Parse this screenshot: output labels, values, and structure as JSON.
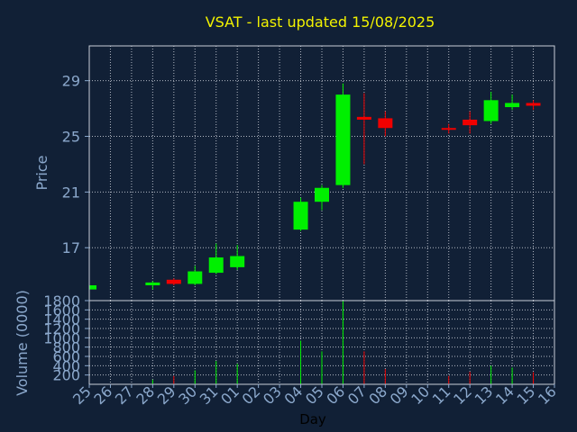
{
  "chart_data": {
    "type": "candlestick",
    "title": "VSAT - last updated 15/08/2025",
    "xlabel": "Day",
    "colors": {
      "background": "#112036",
      "up": "#00f000",
      "down": "#f00000",
      "title": "#f2f200",
      "axis_text": "#8ba8cc",
      "grid": "#d9dde6"
    },
    "x_ticks": [
      "25",
      "26",
      "27",
      "28",
      "29",
      "30",
      "31",
      "01",
      "02",
      "03",
      "04",
      "05",
      "06",
      "07",
      "08",
      "09",
      "10",
      "11",
      "12",
      "13",
      "14",
      "15",
      "16"
    ],
    "price_panel": {
      "ylabel": "Price",
      "ylim": [
        13.2,
        31.5
      ],
      "yticks": [
        17,
        21,
        25,
        29
      ],
      "grid": true
    },
    "volume_panel": {
      "ylabel": "Volume (0000)",
      "ylim": [
        0,
        1800
      ],
      "yticks": [
        200,
        400,
        600,
        800,
        1000,
        1200,
        1400,
        1600,
        1800
      ],
      "grid": true
    },
    "candles": [
      {
        "day": "25",
        "open": 14.0,
        "high": 14.3,
        "low": 13.9,
        "close": 14.3,
        "volume": 0
      },
      {
        "day": "28",
        "open": 14.3,
        "high": 14.6,
        "low": 14.0,
        "close": 14.5,
        "volume": 100
      },
      {
        "day": "29",
        "open": 14.7,
        "high": 14.8,
        "low": 14.3,
        "close": 14.4,
        "volume": 180
      },
      {
        "day": "30",
        "open": 14.4,
        "high": 15.7,
        "low": 14.3,
        "close": 15.3,
        "volume": 300
      },
      {
        "day": "31",
        "open": 15.2,
        "high": 17.3,
        "low": 15.1,
        "close": 16.3,
        "volume": 500
      },
      {
        "day": "01",
        "open": 15.6,
        "high": 17.2,
        "low": 15.4,
        "close": 16.4,
        "volume": 440
      },
      {
        "day": "04",
        "open": 18.3,
        "high": 20.6,
        "low": 18.2,
        "close": 20.3,
        "volume": 940
      },
      {
        "day": "05",
        "open": 20.3,
        "high": 21.5,
        "low": 19.7,
        "close": 21.3,
        "volume": 710
      },
      {
        "day": "06",
        "open": 21.5,
        "high": 28.8,
        "low": 21.3,
        "close": 28.0,
        "volume": 1790
      },
      {
        "day": "07",
        "open": 26.4,
        "high": 28.1,
        "low": 23.0,
        "close": 26.2,
        "volume": 710
      },
      {
        "day": "08",
        "open": 26.3,
        "high": 26.8,
        "low": 25.0,
        "close": 25.6,
        "volume": 330
      },
      {
        "day": "11",
        "open": 25.6,
        "high": 25.9,
        "low": 25.2,
        "close": 25.5,
        "volume": 180
      },
      {
        "day": "12",
        "open": 26.2,
        "high": 26.8,
        "low": 25.2,
        "close": 25.8,
        "volume": 270
      },
      {
        "day": "13",
        "open": 26.1,
        "high": 28.2,
        "low": 25.9,
        "close": 27.6,
        "volume": 400
      },
      {
        "day": "14",
        "open": 27.1,
        "high": 28.0,
        "low": 26.9,
        "close": 27.4,
        "volume": 360
      },
      {
        "day": "15",
        "open": 27.4,
        "high": 27.6,
        "low": 26.9,
        "close": 27.2,
        "volume": 260
      }
    ]
  }
}
